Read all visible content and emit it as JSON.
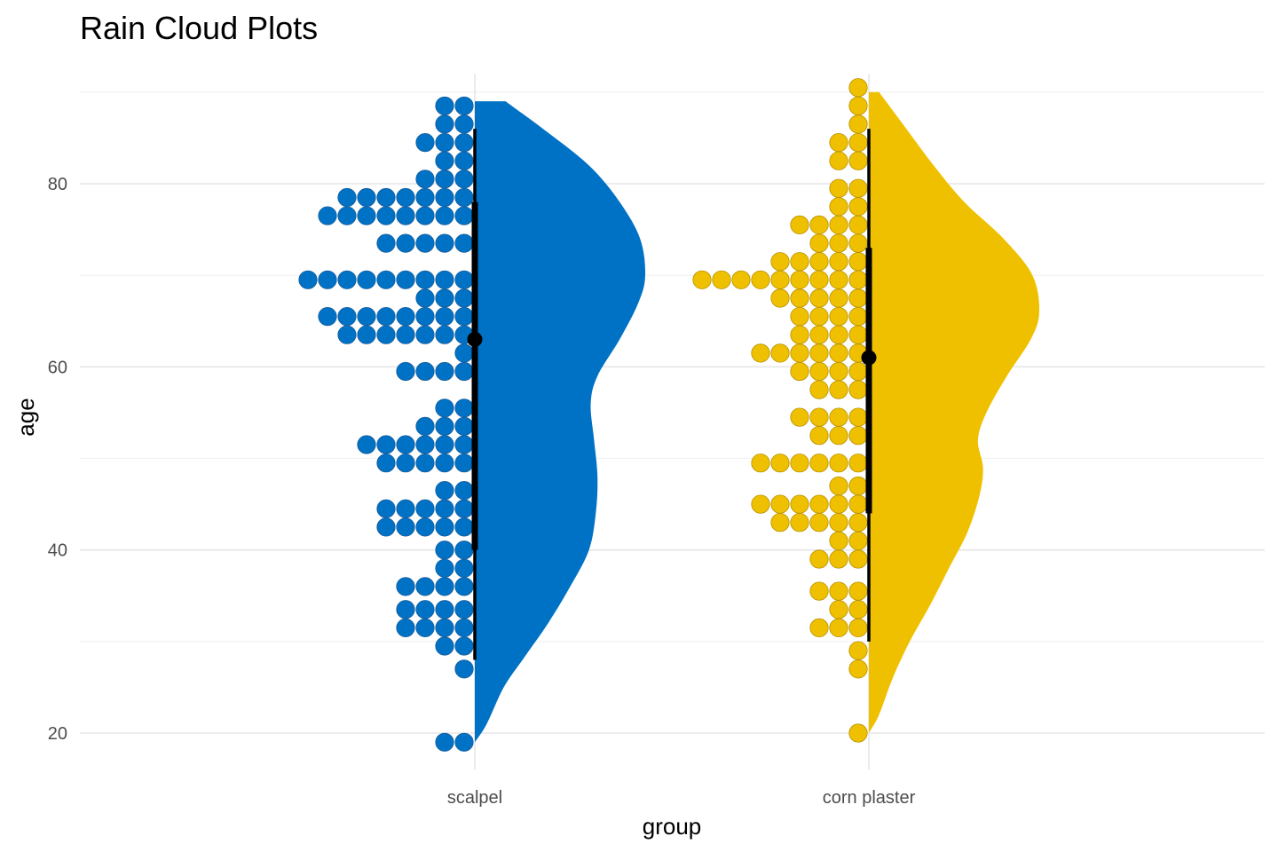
{
  "chart_data": {
    "type": "raincloud",
    "title": "Rain Cloud Plots",
    "xlabel": "group",
    "ylabel": "age",
    "ylim": [
      16,
      92
    ],
    "y_ticks": [
      20,
      40,
      60,
      80
    ],
    "grid": true,
    "legend": "none",
    "series": [
      {
        "category": "scalpel",
        "color": "#0072C6",
        "median": 63,
        "interval_inner": [
          40,
          78
        ],
        "interval_outer": [
          28,
          86
        ],
        "density": [
          [
            19,
            0
          ],
          [
            21,
            0.07
          ],
          [
            25,
            0.17
          ],
          [
            28,
            0.28
          ],
          [
            32,
            0.43
          ],
          [
            36,
            0.56
          ],
          [
            40,
            0.67
          ],
          [
            44,
            0.71
          ],
          [
            48,
            0.72
          ],
          [
            52,
            0.7
          ],
          [
            56,
            0.68
          ],
          [
            59,
            0.72
          ],
          [
            63,
            0.85
          ],
          [
            67,
            0.96
          ],
          [
            70,
            1
          ],
          [
            74,
            0.97
          ],
          [
            78,
            0.85
          ],
          [
            82,
            0.67
          ],
          [
            86,
            0.4
          ],
          [
            89,
            0.18
          ]
        ],
        "dots": [
          {
            "y": 19,
            "n": 2
          },
          {
            "y": 27,
            "n": 1
          },
          {
            "y": 29.5,
            "n": 2
          },
          {
            "y": 31.5,
            "n": 4
          },
          {
            "y": 33.5,
            "n": 4
          },
          {
            "y": 36,
            "n": 4
          },
          {
            "y": 38,
            "n": 2
          },
          {
            "y": 40,
            "n": 2
          },
          {
            "y": 42.5,
            "n": 5
          },
          {
            "y": 44.5,
            "n": 5
          },
          {
            "y": 46.5,
            "n": 2
          },
          {
            "y": 49.5,
            "n": 5
          },
          {
            "y": 51.5,
            "n": 6
          },
          {
            "y": 53.5,
            "n": 3
          },
          {
            "y": 55.5,
            "n": 2
          },
          {
            "y": 59.5,
            "n": 4
          },
          {
            "y": 61.5,
            "n": 1
          },
          {
            "y": 63.5,
            "n": 7
          },
          {
            "y": 65.5,
            "n": 8
          },
          {
            "y": 67.5,
            "n": 3
          },
          {
            "y": 69.5,
            "n": 9
          },
          {
            "y": 73.5,
            "n": 5
          },
          {
            "y": 76.5,
            "n": 8
          },
          {
            "y": 78.5,
            "n": 7
          },
          {
            "y": 80.5,
            "n": 3
          },
          {
            "y": 82.5,
            "n": 2
          },
          {
            "y": 84.5,
            "n": 3
          },
          {
            "y": 86.5,
            "n": 2
          },
          {
            "y": 88.5,
            "n": 2
          }
        ]
      },
      {
        "category": "corn plaster",
        "color": "#EFC000",
        "median": 61,
        "interval_inner": [
          44,
          73
        ],
        "interval_outer": [
          30,
          86
        ],
        "density": [
          [
            20,
            0
          ],
          [
            22,
            0.06
          ],
          [
            26,
            0.14
          ],
          [
            30,
            0.24
          ],
          [
            34,
            0.36
          ],
          [
            38,
            0.47
          ],
          [
            42,
            0.58
          ],
          [
            46,
            0.65
          ],
          [
            49,
            0.67
          ],
          [
            52,
            0.64
          ],
          [
            55,
            0.69
          ],
          [
            59,
            0.81
          ],
          [
            63,
            0.95
          ],
          [
            66,
            1
          ],
          [
            70,
            0.96
          ],
          [
            74,
            0.79
          ],
          [
            78,
            0.56
          ],
          [
            82,
            0.38
          ],
          [
            86,
            0.22
          ],
          [
            90,
            0.06
          ]
        ],
        "dots": [
          {
            "y": 20,
            "n": 1
          },
          {
            "y": 27,
            "n": 1
          },
          {
            "y": 29,
            "n": 1
          },
          {
            "y": 31.5,
            "n": 3
          },
          {
            "y": 33.5,
            "n": 2
          },
          {
            "y": 35.5,
            "n": 3
          },
          {
            "y": 39,
            "n": 3
          },
          {
            "y": 41,
            "n": 2
          },
          {
            "y": 43,
            "n": 5
          },
          {
            "y": 45,
            "n": 6
          },
          {
            "y": 47,
            "n": 2
          },
          {
            "y": 49.5,
            "n": 6
          },
          {
            "y": 52.5,
            "n": 3
          },
          {
            "y": 54.5,
            "n": 4
          },
          {
            "y": 57.5,
            "n": 3
          },
          {
            "y": 59.5,
            "n": 4
          },
          {
            "y": 61.5,
            "n": 6
          },
          {
            "y": 63.5,
            "n": 4
          },
          {
            "y": 65.5,
            "n": 4
          },
          {
            "y": 67.5,
            "n": 5
          },
          {
            "y": 69.5,
            "n": 9
          },
          {
            "y": 71.5,
            "n": 5
          },
          {
            "y": 73.5,
            "n": 3
          },
          {
            "y": 75.5,
            "n": 4
          },
          {
            "y": 77.5,
            "n": 2
          },
          {
            "y": 79.5,
            "n": 2
          },
          {
            "y": 82.5,
            "n": 2
          },
          {
            "y": 84.5,
            "n": 2
          },
          {
            "y": 86.5,
            "n": 1
          },
          {
            "y": 88.5,
            "n": 1
          },
          {
            "y": 90.5,
            "n": 1
          }
        ]
      }
    ]
  }
}
